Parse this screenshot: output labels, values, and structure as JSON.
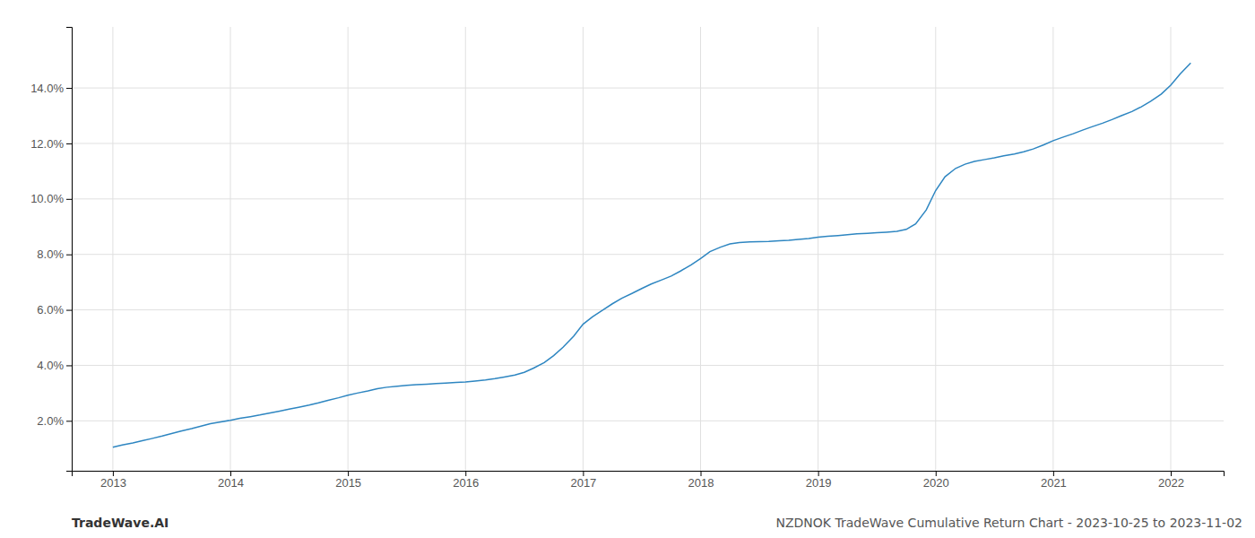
{
  "chart_data": {
    "type": "line",
    "x": [
      2013.0,
      2013.08,
      2013.17,
      2013.25,
      2013.33,
      2013.42,
      2013.5,
      2013.58,
      2013.67,
      2013.75,
      2013.83,
      2013.92,
      2014.0,
      2014.08,
      2014.17,
      2014.25,
      2014.33,
      2014.42,
      2014.5,
      2014.58,
      2014.67,
      2014.75,
      2014.83,
      2014.92,
      2015.0,
      2015.08,
      2015.17,
      2015.25,
      2015.33,
      2015.42,
      2015.5,
      2015.58,
      2015.67,
      2015.75,
      2015.83,
      2015.92,
      2016.0,
      2016.08,
      2016.17,
      2016.25,
      2016.33,
      2016.42,
      2016.5,
      2016.58,
      2016.67,
      2016.75,
      2016.83,
      2016.92,
      2017.0,
      2017.08,
      2017.17,
      2017.25,
      2017.33,
      2017.42,
      2017.5,
      2017.58,
      2017.67,
      2017.75,
      2017.83,
      2017.92,
      2018.0,
      2018.08,
      2018.17,
      2018.25,
      2018.33,
      2018.42,
      2018.5,
      2018.58,
      2018.67,
      2018.75,
      2018.83,
      2018.92,
      2019.0,
      2019.08,
      2019.17,
      2019.25,
      2019.33,
      2019.42,
      2019.5,
      2019.58,
      2019.67,
      2019.75,
      2019.83,
      2019.92,
      2020.0,
      2020.08,
      2020.17,
      2020.25,
      2020.33,
      2020.42,
      2020.5,
      2020.58,
      2020.67,
      2020.75,
      2020.83,
      2020.92,
      2021.0,
      2021.08,
      2021.17,
      2021.25,
      2021.33,
      2021.42,
      2021.5,
      2021.58,
      2021.67,
      2021.75,
      2021.83,
      2021.92,
      2022.0,
      2022.08,
      2022.17
    ],
    "values": [
      0.0105,
      0.0113,
      0.012,
      0.0128,
      0.0136,
      0.0145,
      0.0154,
      0.0163,
      0.0172,
      0.0181,
      0.019,
      0.0196,
      0.0202,
      0.0209,
      0.0215,
      0.0221,
      0.0228,
      0.0235,
      0.0242,
      0.0249,
      0.0257,
      0.0265,
      0.0274,
      0.0283,
      0.0292,
      0.03,
      0.0308,
      0.0316,
      0.0321,
      0.0325,
      0.0328,
      0.033,
      0.0332,
      0.0334,
      0.0336,
      0.0338,
      0.034,
      0.0343,
      0.0347,
      0.0352,
      0.0358,
      0.0365,
      0.0375,
      0.039,
      0.041,
      0.0435,
      0.0465,
      0.0505,
      0.0548,
      0.0575,
      0.06,
      0.0622,
      0.0642,
      0.066,
      0.0677,
      0.0693,
      0.0708,
      0.0722,
      0.074,
      0.0762,
      0.0785,
      0.081,
      0.0826,
      0.0838,
      0.0843,
      0.0845,
      0.0846,
      0.0847,
      0.0849,
      0.0851,
      0.0854,
      0.0857,
      0.0862,
      0.0865,
      0.0868,
      0.0871,
      0.0874,
      0.0876,
      0.0878,
      0.088,
      0.0883,
      0.089,
      0.091,
      0.096,
      0.103,
      0.108,
      0.111,
      0.1125,
      0.1135,
      0.1142,
      0.1148,
      0.1155,
      0.1162,
      0.117,
      0.118,
      0.1195,
      0.121,
      0.1222,
      0.1235,
      0.1248,
      0.126,
      0.1273,
      0.1286,
      0.13,
      0.1315,
      0.1332,
      0.1352,
      0.1378,
      0.141,
      0.145,
      0.149
    ],
    "color": "#2e86c1",
    "xlim": [
      2012.65,
      2022.45
    ],
    "ylim": [
      0.002,
      0.162
    ],
    "xticks": [
      2013,
      2014,
      2015,
      2016,
      2017,
      2018,
      2019,
      2020,
      2021,
      2022
    ],
    "yticks": [
      {
        "value": 0.02,
        "label": "2.0%"
      },
      {
        "value": 0.04,
        "label": "4.0%"
      },
      {
        "value": 0.06,
        "label": "6.0%"
      },
      {
        "value": 0.08,
        "label": "8.0%"
      },
      {
        "value": 0.1,
        "label": "10.0%"
      },
      {
        "value": 0.12,
        "label": "12.0%"
      },
      {
        "value": 0.14,
        "label": "14.0%"
      }
    ],
    "grid": true,
    "annotations": [
      "TradeWave.AI",
      "NZDNOK TradeWave Cumulative Return Chart - 2023-10-25 to 2023-11-02"
    ]
  }
}
